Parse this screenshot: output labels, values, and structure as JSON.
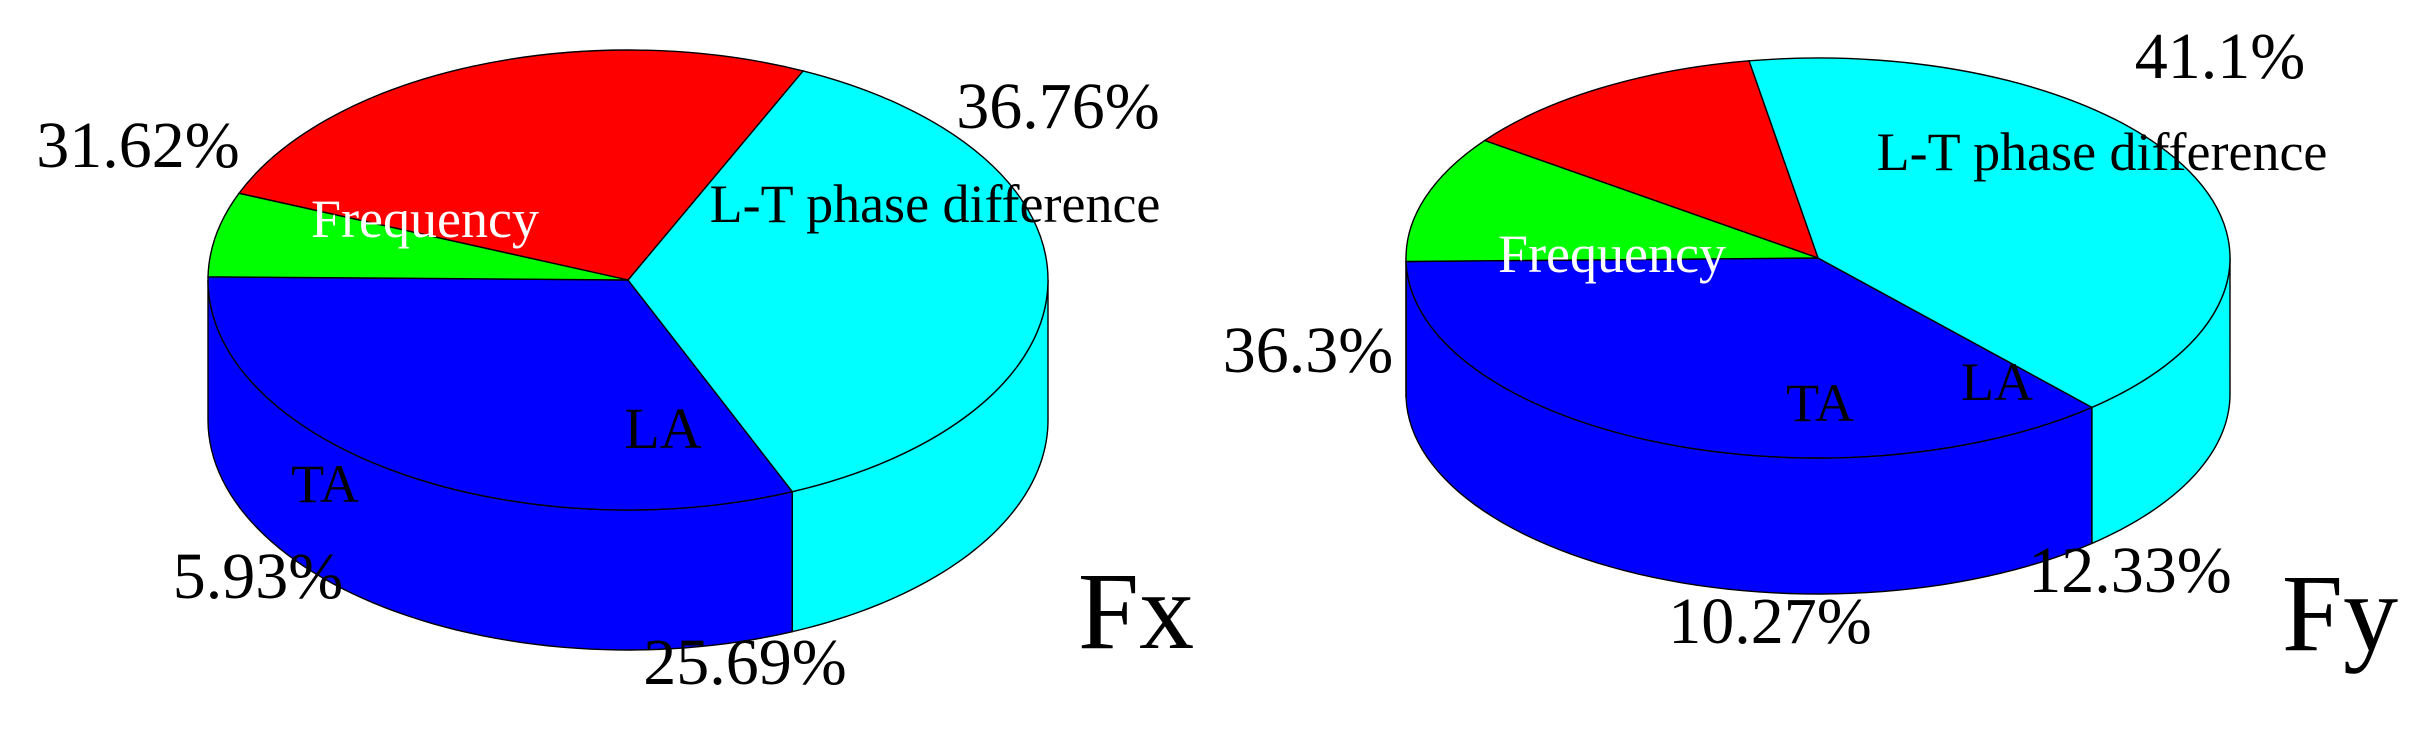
{
  "chart_data": [
    {
      "type": "pie",
      "title": "Fx",
      "slices": [
        {
          "label": "Frequency",
          "value": 31.62,
          "value_label": "31.62%",
          "color": "#0000ff",
          "label_color": "#ffffff"
        },
        {
          "label": "L-T phase difference",
          "value": 36.76,
          "value_label": "36.76%",
          "color": "#00ffff",
          "label_color": "#000000"
        },
        {
          "label": "LA",
          "value": 25.69,
          "value_label": "25.69%",
          "color": "#ff0000",
          "label_color": "#000000"
        },
        {
          "label": "TA",
          "value": 5.93,
          "value_label": "5.93%",
          "color": "#00ff00",
          "label_color": "#000000"
        }
      ]
    },
    {
      "type": "pie",
      "title": "Fy",
      "slices": [
        {
          "label": "Frequency",
          "value": 36.3,
          "value_label": "36.3%",
          "color": "#0000ff",
          "label_color": "#ffffff"
        },
        {
          "label": "L-T phase difference",
          "value": 41.1,
          "value_label": "41.1%",
          "color": "#00ffff",
          "label_color": "#000000"
        },
        {
          "label": "LA",
          "value": 12.33,
          "value_label": "12.33%",
          "color": "#ff0000",
          "label_color": "#000000"
        },
        {
          "label": "TA",
          "value": 10.27,
          "value_label": "10.27%",
          "color": "#00ff00",
          "label_color": "#000000"
        }
      ]
    }
  ]
}
